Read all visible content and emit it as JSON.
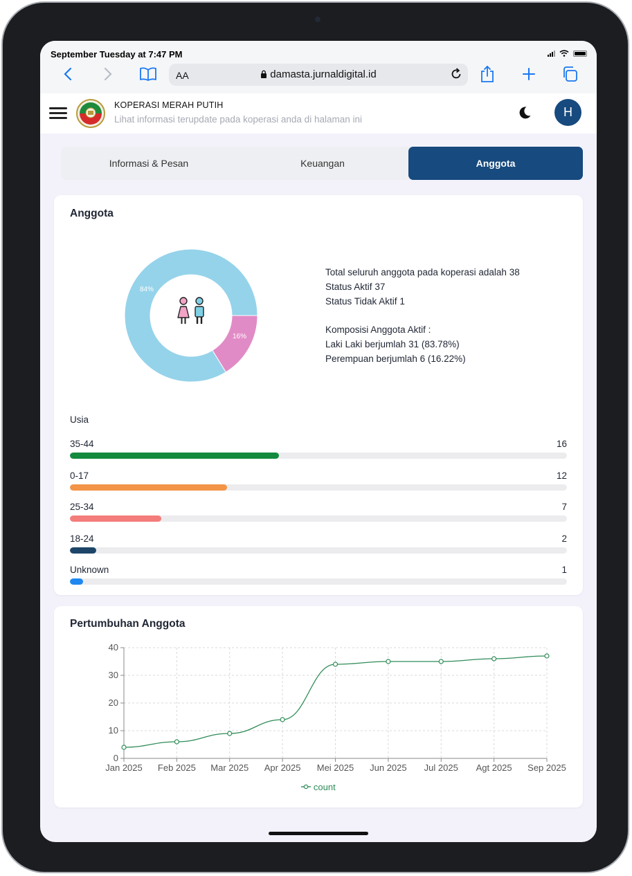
{
  "status": {
    "time": "September Tuesday at 7:47 PM"
  },
  "browser": {
    "text_size_label": "AA",
    "url": "damasta.jurnaldigital.id"
  },
  "app": {
    "title": "KOPERASI MERAH PUTIH",
    "subtitle": "Lihat informasi terupdate pada koperasi anda di halaman ini",
    "avatar_initial": "H"
  },
  "tabs": [
    {
      "label": "Informasi & Pesan",
      "active": false
    },
    {
      "label": "Keuangan",
      "active": false
    },
    {
      "label": "Anggota",
      "active": true
    }
  ],
  "anggota": {
    "title": "Anggota",
    "donut": {
      "slices": [
        {
          "label": "84%",
          "value": 83.78,
          "color": "#95d3ea"
        },
        {
          "label": "16%",
          "value": 16.22,
          "color": "#e18bc6"
        }
      ]
    },
    "info": {
      "total_text": "Total seluruh anggota pada koperasi adalah",
      "total_value": "38",
      "aktif_text": "Status Aktif",
      "aktif_value": "37",
      "tidak_aktif_text": "Status Tidak Aktif",
      "tidak_aktif_value": "1",
      "komposisi_label": "Komposisi Anggota Aktif :",
      "laki_text": "Laki Laki berjumlah",
      "laki_value": "31 (83.78%)",
      "perempuan_text": "Perempuan berjumlah",
      "perempuan_value": "6 (16.22%)"
    },
    "usia": {
      "title": "Usia",
      "max": 38,
      "rows": [
        {
          "label": "35-44",
          "value": 16,
          "color": "#138a3e"
        },
        {
          "label": "0-17",
          "value": 12,
          "color": "#f39447"
        },
        {
          "label": "25-34",
          "value": 7,
          "color": "#f47c7a"
        },
        {
          "label": "18-24",
          "value": 2,
          "color": "#1d4568"
        },
        {
          "label": "Unknown",
          "value": 1,
          "color": "#1e88f0"
        }
      ]
    }
  },
  "pertumbuhan": {
    "title": "Pertumbuhan Anggota",
    "legend": "count",
    "line_color": "#2e8b57"
  },
  "chart_data": {
    "type": "line",
    "categories": [
      "Jan 2025",
      "Feb 2025",
      "Mar 2025",
      "Apr 2025",
      "Mei 2025",
      "Jun 2025",
      "Jul 2025",
      "Agt 2025",
      "Sep 2025"
    ],
    "series": [
      {
        "name": "count",
        "values": [
          4,
          6,
          9,
          14,
          34,
          35,
          35,
          36,
          37
        ]
      }
    ],
    "ylim": [
      0,
      40
    ],
    "yticks": [
      0,
      10,
      20,
      30,
      40
    ],
    "grid": true,
    "legend": "bottom"
  }
}
